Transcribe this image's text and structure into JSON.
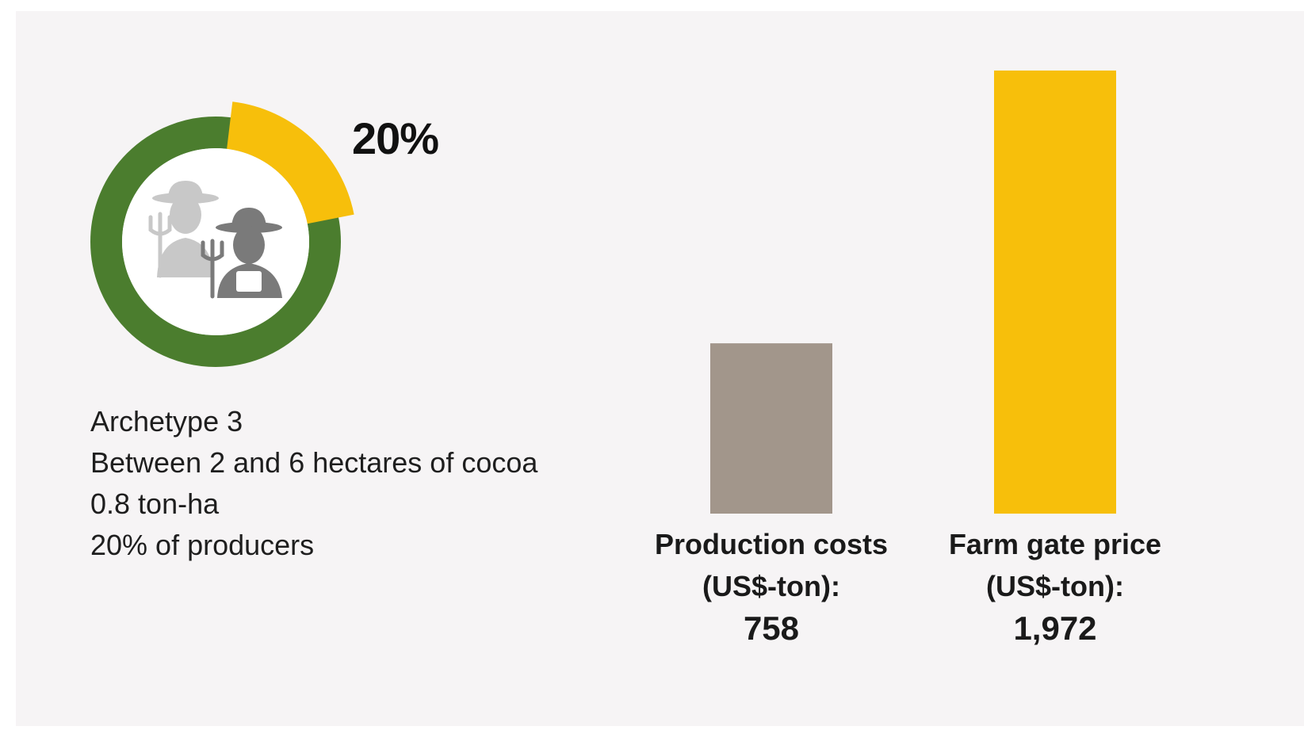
{
  "donut": {
    "percent_label": "20%",
    "share": 0.2,
    "colors": {
      "highlight": "#f7bf0b",
      "rest": "#4b7d2e",
      "center": "#ffffff"
    },
    "icon": "farmers-with-pitchforks-icon"
  },
  "info": {
    "line1": "Archetype 3",
    "line2": "Between 2 and 6 hectares of cocoa",
    "line3": "0.8 ton-ha",
    "line4": "20% of producers"
  },
  "chart_data": {
    "type": "bar",
    "categories": [
      "Production costs (US$-ton):",
      "Farm gate price (US$-ton):"
    ],
    "values": [
      758,
      1972
    ],
    "value_labels": [
      "758",
      "1,972"
    ],
    "label_lines": [
      [
        "Production costs",
        "(US$-ton):"
      ],
      [
        "Farm gate price",
        "(US$-ton):"
      ]
    ],
    "colors": [
      "#a2968b",
      "#f7bf0b"
    ],
    "ylim": [
      0,
      1972
    ],
    "grid": false,
    "legend": "none",
    "title": "",
    "xlabel": "",
    "ylabel": ""
  }
}
